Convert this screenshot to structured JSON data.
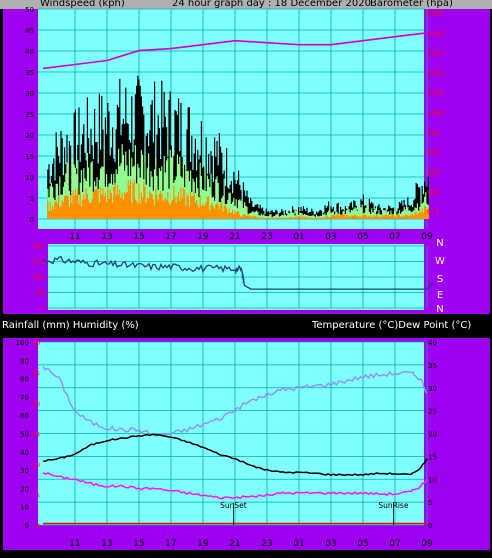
{
  "top_header": {
    "left": "Windspeed (kph)",
    "center": "24 hour graph day : 18 December 2020",
    "right": "Barometer (hpa)"
  },
  "mid_header": {
    "left": "Rainfall (mm)  Humidity (%)",
    "right": "Temperature (°C)Dew Point (°C)"
  },
  "colors": {
    "frame": "#a000f0",
    "plot_bg": "#80ffff",
    "grid": "#00b0a0",
    "header_band": "#b0b0b0",
    "gust": "#000000",
    "wind_avg": "#90ff90",
    "wind_min": "#ff9000",
    "barometer": "#d000d0",
    "direction": "#204080",
    "temperature": "#000000",
    "humidity": "#9090f0",
    "dewpoint": "#ff10ff",
    "rain": "#ff0000"
  },
  "chart_data": [
    {
      "type": "line",
      "title": "24 hour graph day : 18 December 2020",
      "xlabel": "",
      "ylabel_left": "Windspeed (kph)",
      "ylabel_right": "Barometer (hpa)",
      "x_ticks": [
        "11",
        "13",
        "15",
        "17",
        "19",
        "21",
        "23",
        "01",
        "03",
        "05",
        "07",
        "09"
      ],
      "y_left_ticks": [
        0,
        5,
        10,
        15,
        20,
        25,
        30,
        35,
        40,
        45,
        50
      ],
      "y_left_lim": [
        0,
        50
      ],
      "y_right_ticks": [
        975,
        980,
        985,
        990,
        995,
        1000,
        1005,
        1010,
        1015,
        1020,
        1025
      ],
      "y_right_lim": [
        973,
        1026
      ],
      "series": [
        {
          "name": "Windspeed (kph)",
          "style": "gust-black",
          "envelope": [
            [
              9,
              12
            ],
            [
              10,
              20
            ],
            [
              11,
              22
            ],
            [
              12,
              25
            ],
            [
              13,
              27
            ],
            [
              14,
              29
            ],
            [
              15,
              29
            ],
            [
              16,
              28
            ],
            [
              17,
              27
            ],
            [
              18,
              25
            ],
            [
              19,
              22
            ],
            [
              20,
              18
            ],
            [
              21,
              12
            ],
            [
              21.5,
              8
            ],
            [
              22,
              4
            ],
            [
              23,
              2
            ],
            [
              24,
              2
            ],
            [
              25,
              3
            ],
            [
              26,
              2
            ],
            [
              27,
              4
            ],
            [
              28,
              3
            ],
            [
              29,
              5
            ],
            [
              30,
              3
            ],
            [
              31,
              3
            ],
            [
              32,
              5
            ],
            [
              33,
              12
            ]
          ]
        },
        {
          "name": "",
          "style": "average-green",
          "envelope": [
            [
              9,
              7
            ],
            [
              10,
              11
            ],
            [
              11,
              12
            ],
            [
              12,
              14
            ],
            [
              13,
              15
            ],
            [
              14,
              16
            ],
            [
              15,
              16
            ],
            [
              16,
              15
            ],
            [
              17,
              14
            ],
            [
              18,
              13
            ],
            [
              19,
              11
            ],
            [
              20,
              9
            ],
            [
              21,
              6
            ],
            [
              21.5,
              4
            ],
            [
              22,
              2
            ],
            [
              23,
              1
            ],
            [
              24,
              1
            ],
            [
              25,
              2
            ],
            [
              26,
              1
            ],
            [
              27,
              2
            ],
            [
              28,
              2
            ],
            [
              29,
              3
            ],
            [
              30,
              2
            ],
            [
              31,
              2
            ],
            [
              32,
              3
            ],
            [
              33,
              6
            ]
          ]
        },
        {
          "name": "",
          "style": "min-orange",
          "envelope": [
            [
              9,
              3
            ],
            [
              10,
              5
            ],
            [
              11,
              6
            ],
            [
              12,
              7
            ],
            [
              13,
              7
            ],
            [
              14,
              8
            ],
            [
              15,
              8
            ],
            [
              16,
              7
            ],
            [
              17,
              7
            ],
            [
              18,
              6
            ],
            [
              19,
              5
            ],
            [
              20,
              4
            ],
            [
              21,
              2
            ],
            [
              21.5,
              1
            ],
            [
              22,
              1
            ],
            [
              23,
              0
            ],
            [
              24,
              0
            ],
            [
              25,
              1
            ],
            [
              26,
              0
            ],
            [
              27,
              1
            ],
            [
              28,
              1
            ],
            [
              29,
              1
            ],
            [
              30,
              1
            ],
            [
              31,
              1
            ],
            [
              32,
              1
            ],
            [
              33,
              3
            ]
          ]
        },
        {
          "name": "Barometer (hpa)",
          "points": [
            [
              9,
              1011
            ],
            [
              11,
              1012
            ],
            [
              13,
              1013
            ],
            [
              15,
              1015.5
            ],
            [
              17,
              1016
            ],
            [
              19,
              1017
            ],
            [
              21,
              1018
            ],
            [
              23,
              1017.5
            ],
            [
              25,
              1017
            ],
            [
              27,
              1017
            ],
            [
              29,
              1018
            ],
            [
              31,
              1019
            ],
            [
              33,
              1020
            ]
          ]
        }
      ]
    },
    {
      "type": "line",
      "title": "",
      "y_right_labels": [
        "N",
        "W",
        "S",
        "E",
        "N"
      ],
      "y_ticks": [
        0,
        90,
        180,
        270,
        360
      ],
      "y_lim": [
        0,
        360
      ],
      "series": [
        {
          "name": "",
          "points": [
            [
              9,
              275
            ],
            [
              10,
              280
            ],
            [
              11,
              270
            ],
            [
              12,
              260
            ],
            [
              13,
              255
            ],
            [
              14,
              250
            ],
            [
              15,
              245
            ],
            [
              16,
              240
            ],
            [
              17,
              240
            ],
            [
              18,
              235
            ],
            [
              19,
              230
            ],
            [
              20,
              230
            ],
            [
              21,
              228
            ],
            [
              21.4,
              225
            ],
            [
              21.6,
              130
            ],
            [
              22,
              110
            ],
            [
              33,
              110
            ],
            [
              33.2,
              130
            ],
            [
              33.4,
              150
            ]
          ]
        }
      ]
    },
    {
      "type": "line",
      "title": "",
      "ylabel_left": "Rainfall (mm)  Humidity (%)",
      "ylabel_right": "Temperature (°C)Dew Point (°C)",
      "x_ticks": [
        "11",
        "13",
        "15",
        "17",
        "19",
        "21",
        "23",
        "01",
        "03",
        "05",
        "07",
        "09"
      ],
      "y_left_ticks": [
        0,
        10,
        20,
        30,
        40,
        50,
        60,
        70,
        80,
        90,
        100
      ],
      "y_left_lim": [
        0,
        100
      ],
      "y_right_ticks": [
        0,
        5,
        10,
        15,
        20,
        25,
        30,
        35,
        40
      ],
      "y_right_lim": [
        0,
        40
      ],
      "y_rain_ticks": [
        0,
        5,
        10,
        15,
        20,
        25,
        30
      ],
      "annotations": [
        {
          "text": "SunSet",
          "x": 20.9
        },
        {
          "text": "SunRise",
          "x": 30.9
        }
      ],
      "series": [
        {
          "name": "Temperature (°C)",
          "points": [
            [
              9,
              14
            ],
            [
              10,
              14.5
            ],
            [
              11,
              15.5
            ],
            [
              12,
              17.5
            ],
            [
              13,
              18.5
            ],
            [
              14,
              19
            ],
            [
              15,
              19.5
            ],
            [
              16,
              19.8
            ],
            [
              17,
              19.2
            ],
            [
              18,
              18.2
            ],
            [
              19,
              17
            ],
            [
              20,
              15.5
            ],
            [
              21,
              14.5
            ],
            [
              22,
              13
            ],
            [
              23,
              12
            ],
            [
              24,
              11.5
            ],
            [
              25,
              11.5
            ],
            [
              26,
              11.3
            ],
            [
              27,
              11
            ],
            [
              28,
              11
            ],
            [
              29,
              11
            ],
            [
              30,
              11.3
            ],
            [
              31,
              11.2
            ],
            [
              32,
              11
            ],
            [
              32.6,
              12.5
            ],
            [
              33,
              14.5
            ]
          ]
        },
        {
          "name": "Humidity (%)",
          "points": [
            [
              9,
              87
            ],
            [
              10,
              80
            ],
            [
              11,
              62
            ],
            [
              12,
              56
            ],
            [
              13,
              53
            ],
            [
              14,
              52
            ],
            [
              15,
              52
            ],
            [
              16,
              49
            ],
            [
              17,
              50
            ],
            [
              18,
              52
            ],
            [
              19,
              55
            ],
            [
              20,
              58
            ],
            [
              21,
              63
            ],
            [
              22,
              68
            ],
            [
              23,
              71
            ],
            [
              24,
              74
            ],
            [
              25,
              75
            ],
            [
              26,
              76
            ],
            [
              27,
              77
            ],
            [
              28,
              79
            ],
            [
              29,
              81
            ],
            [
              30,
              82
            ],
            [
              31,
              83
            ],
            [
              32,
              83
            ],
            [
              32.6,
              80
            ],
            [
              33,
              72
            ]
          ]
        },
        {
          "name": "Dew Point (°C)",
          "points": [
            [
              9,
              11.5
            ],
            [
              10,
              10.5
            ],
            [
              11,
              10
            ],
            [
              12,
              9
            ],
            [
              13,
              8.5
            ],
            [
              14,
              8.5
            ],
            [
              15,
              8
            ],
            [
              16,
              8
            ],
            [
              17,
              7.5
            ],
            [
              18,
              7
            ],
            [
              19,
              6.5
            ],
            [
              20,
              6
            ],
            [
              21,
              6
            ],
            [
              22,
              6.2
            ],
            [
              23,
              6.5
            ],
            [
              24,
              7
            ],
            [
              25,
              7
            ],
            [
              26,
              7
            ],
            [
              27,
              7
            ],
            [
              28,
              7
            ],
            [
              29,
              7
            ],
            [
              30,
              6.8
            ],
            [
              31,
              6.8
            ],
            [
              32,
              7.3
            ],
            [
              32.6,
              8.5
            ],
            [
              33,
              10
            ]
          ]
        },
        {
          "name": "Rainfall (mm)",
          "points": [
            [
              9,
              0
            ],
            [
              33,
              0
            ]
          ]
        }
      ]
    }
  ]
}
